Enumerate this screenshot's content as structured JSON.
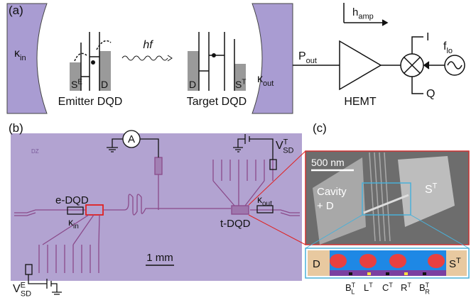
{
  "panel_a": {
    "label": "(a)",
    "kappa_in": {
      "base": "κ",
      "sub": "in"
    },
    "emitter": {
      "left": {
        "base": "S",
        "sup": "E"
      },
      "right": "D",
      "caption": "Emitter DQD"
    },
    "photon": "hf",
    "target": {
      "left": "D",
      "right": {
        "base": "S",
        "sup": "T"
      },
      "caption": "Target DQD"
    },
    "kappa_out": {
      "base": "κ",
      "sub": "out"
    },
    "p_out": {
      "base": "P",
      "sub": "out"
    },
    "h_amp": {
      "base": "h",
      "sub": "amp"
    },
    "amplifier": "HEMT",
    "i": "I",
    "q": "Q",
    "f_lo": {
      "base": "f",
      "sub": "lo"
    }
  },
  "panel_b": {
    "label": "(b)",
    "ammeter": "A",
    "v_sd_t": {
      "base": "V",
      "sup": "T",
      "sub": "SD"
    },
    "marker": "DZ",
    "e_dqd": "e-DQD",
    "kappa_in": {
      "base": "κ",
      "sub": "in"
    },
    "kappa_out": {
      "base": "κ",
      "sub": "out"
    },
    "t_dqd": "t-DQD",
    "scale": "1 mm",
    "v_sd_e": {
      "base": "V",
      "sup": "E",
      "sub": "SD"
    }
  },
  "panel_c": {
    "label": "(c)",
    "scale": "500 nm",
    "cavity": [
      "Cavity",
      "+ D"
    ],
    "right_lead": {
      "base": "S",
      "sup": "T"
    },
    "schematic": {
      "left": "D",
      "right": {
        "base": "S",
        "sup": "T"
      },
      "gates": [
        {
          "base": "B",
          "sup": "T",
          "sub": "L"
        },
        {
          "base": "L",
          "sup": "T"
        },
        {
          "base": "C",
          "sup": "T"
        },
        {
          "base": "R",
          "sup": "T"
        },
        {
          "base": "B",
          "sup": "T",
          "sub": "R"
        }
      ]
    }
  }
}
